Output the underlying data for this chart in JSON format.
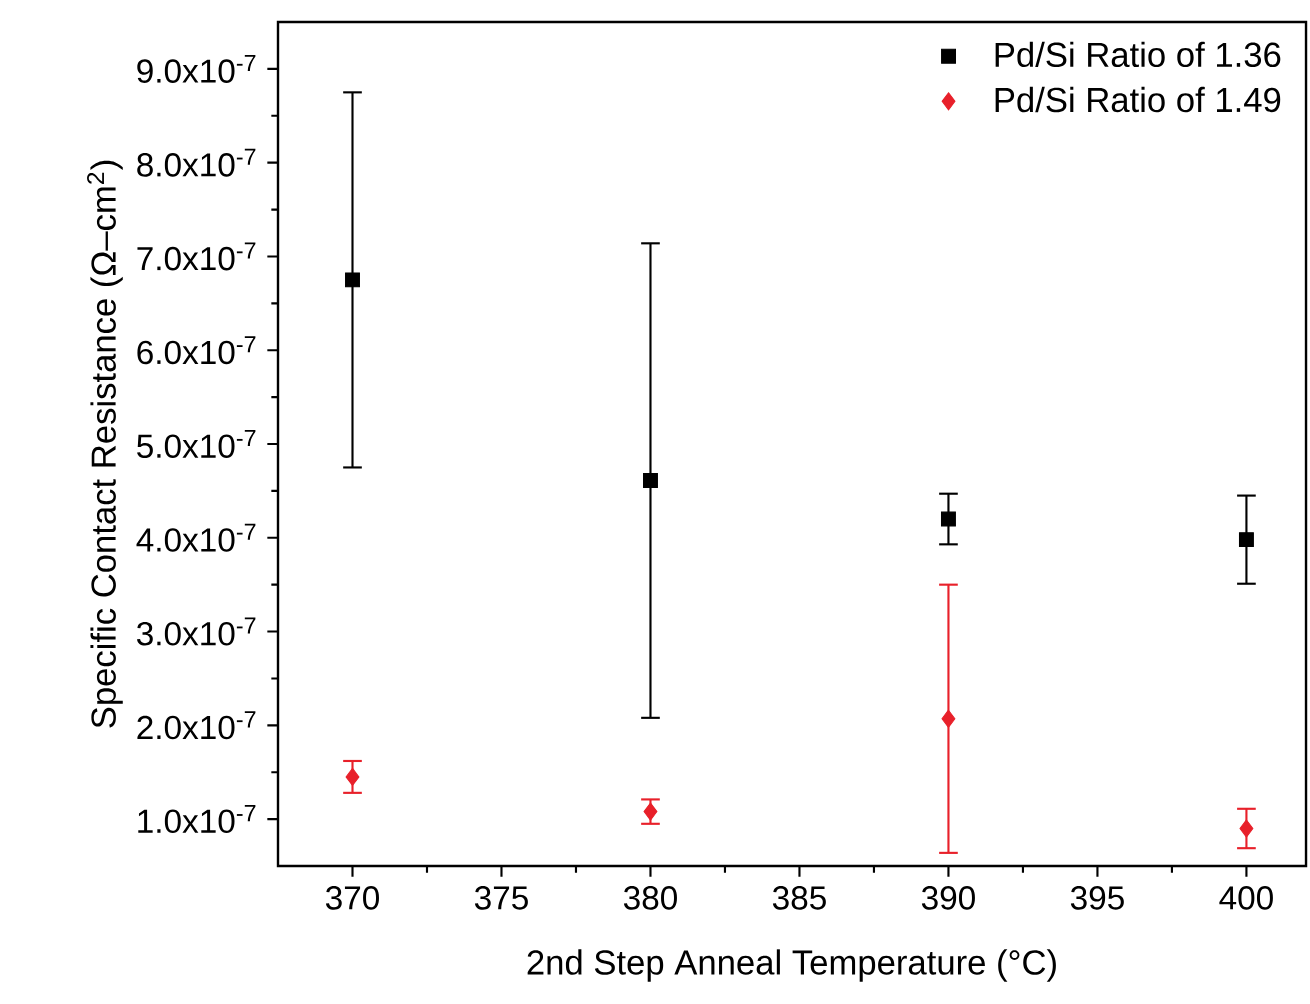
{
  "chart_data": {
    "type": "scatter",
    "xlabel": "2nd Step Anneal Temperature (°C)",
    "ylabel": "Specific Contact Resistance (Ω–cm$^{2}$)",
    "x": [
      370,
      380,
      390,
      400
    ],
    "series": [
      {
        "name": "Pd/Si Ratio of 1.36",
        "color": "#000000",
        "marker": "square",
        "values": [
          6.75e-07,
          4.61e-07,
          4.2e-07,
          3.98e-07
        ],
        "errors": [
          2e-07,
          2.53e-07,
          2.7e-08,
          4.7e-08
        ]
      },
      {
        "name": "Pd/Si Ratio of 1.49",
        "color": "#e8202a",
        "marker": "diamond",
        "values": [
          1.45e-07,
          1.08e-07,
          2.07e-07,
          9e-08
        ],
        "errors": [
          1.7e-08,
          1.3e-08,
          1.43e-07,
          2.1e-08
        ]
      }
    ],
    "xlim": [
      367.5,
      402
    ],
    "xticks": [
      370,
      375,
      380,
      385,
      390,
      395,
      400
    ],
    "ylim": [
      5e-08,
      9.5e-07
    ],
    "yticks": [
      {
        "value": 1e-07,
        "label": "1.0x10$^{-7}$"
      },
      {
        "value": 2e-07,
        "label": "2.0x10$^{-7}$"
      },
      {
        "value": 3e-07,
        "label": "3.0x10$^{-7}$"
      },
      {
        "value": 4e-07,
        "label": "4.0x10$^{-7}$"
      },
      {
        "value": 5e-07,
        "label": "5.0x10$^{-7}$"
      },
      {
        "value": 6e-07,
        "label": "6.0x10$^{-7}$"
      },
      {
        "value": 7e-07,
        "label": "7.0x10$^{-7}$"
      },
      {
        "value": 8e-07,
        "label": "8.0x10$^{-7}$"
      },
      {
        "value": 9e-07,
        "label": "9.0x10$^{-7}$"
      }
    ],
    "grid": false,
    "legend": "top right"
  }
}
